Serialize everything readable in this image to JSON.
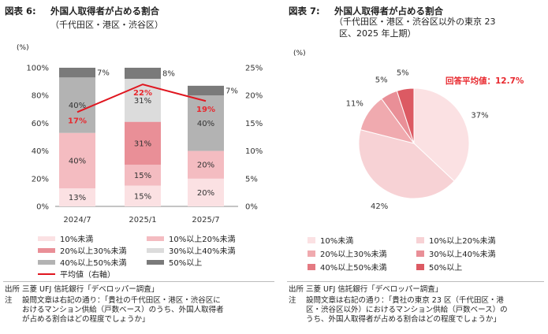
{
  "left": {
    "title_num": "図表 6:",
    "title": "外国人取得者が占める割合",
    "subtitle": "（千代田区・港区・渋谷区）",
    "unit": "(%)",
    "source": "出所  三菱 UFJ 信託銀行「デベロッパー調査」",
    "note_label": "注",
    "note_lines": [
      "設問文章は右記の通り：「貴社の千代田区・港区・渋谷区に",
      "おけるマンション供給（戸数ベース）のうち、外国人取得者",
      "が占める割合はどの程度でしょうか」"
    ],
    "legend": [
      "10%未満",
      "10%以上20%未満",
      "20%以上30%未満",
      "30%以上40%未満",
      "40%以上50%未満",
      "50%以上",
      "平均値（右軸）"
    ]
  },
  "right": {
    "title_num": "図表 7:",
    "title": "外国人取得者が占める割合",
    "subtitle_lines": [
      "（千代田区・港区・渋谷区以外の東京 23",
      "区、2025 年上期）"
    ],
    "unit": "(%)",
    "source": "出所  三菱 UFJ 信託銀行「デベロッパー調査」",
    "note_label": "注",
    "note_lines": [
      "設問文章は右記の通り：「貴社の東京 23 区（千代田区・港",
      "区・渋谷区以外）におけるマンション供給（戸数ベース）の",
      "うち、外国人取得者が占める割合はどの程度でしょうか」"
    ],
    "legend": [
      "10%未満",
      "10%以上20%未満",
      "20%以上30%未満",
      "30%以上40%未満",
      "40%以上50%未満",
      "50%以上"
    ]
  },
  "colors": {
    "lt10": "#fbe1e3",
    "10to20": "#f4bcc1",
    "20to30": "#e98f97",
    "30to40": "#dcdcdc",
    "40to50": "#b3b3b3",
    "ge50": "#7a7a7a",
    "avg_line": "#e0161f",
    "pie_lt10": "#fbe1e3",
    "pie_10to20": "#f7d2d5",
    "pie_20to30": "#f0aaaf",
    "pie_30to40": "#e98f97",
    "pie_40to50": "#e47a82",
    "pie_ge50": "#dc5a63"
  },
  "chart_data": [
    {
      "type": "bar",
      "stacked": true,
      "categories": [
        "2024/7",
        "2025/1",
        "2025/7"
      ],
      "series": [
        {
          "name": "10%未満",
          "values": [
            13,
            15,
            20
          ],
          "labels": [
            "13%",
            "15%",
            "20%"
          ]
        },
        {
          "name": "10%以上20%未満",
          "values": [
            40,
            15,
            20
          ],
          "labels": [
            "40%",
            "15%",
            "20%"
          ]
        },
        {
          "name": "20%以上30%未満",
          "values": [
            0,
            31,
            0
          ],
          "labels": [
            "",
            "31%",
            ""
          ]
        },
        {
          "name": "30%以上40%未満",
          "values": [
            0,
            31,
            0
          ],
          "labels": [
            "",
            "31%",
            ""
          ]
        },
        {
          "name": "40%以上50%未満",
          "values": [
            40,
            0,
            40
          ],
          "labels": [
            "40%",
            "",
            "40%"
          ]
        },
        {
          "name": "50%以上",
          "values": [
            7,
            8,
            7
          ],
          "labels": [
            "7%",
            "8%",
            "7%"
          ]
        }
      ],
      "line_series": {
        "name": "平均値（右軸）",
        "values": [
          17,
          22,
          19
        ],
        "labels": [
          "17%",
          "22%",
          "19%"
        ]
      },
      "y_left_ticks": [
        "0%",
        "20%",
        "40%",
        "60%",
        "80%",
        "100%"
      ],
      "y_right_ticks": [
        "0%",
        "5%",
        "10%",
        "15%",
        "20%",
        "25%"
      ],
      "ylim": [
        0,
        100
      ],
      "y2lim": [
        0,
        25
      ]
    },
    {
      "type": "pie",
      "categories": [
        "10%未満",
        "10%以上20%未満",
        "20%以上30%未満",
        "30%以上40%未満",
        "40%以上50%未満",
        "50%以上"
      ],
      "values": [
        37,
        42,
        11,
        5,
        0,
        5
      ],
      "labels": [
        "37%",
        "42%",
        "11%",
        "5%",
        "",
        "5%"
      ],
      "annotation": "回答平均値：",
      "annotation_value": "12.7%"
    }
  ]
}
